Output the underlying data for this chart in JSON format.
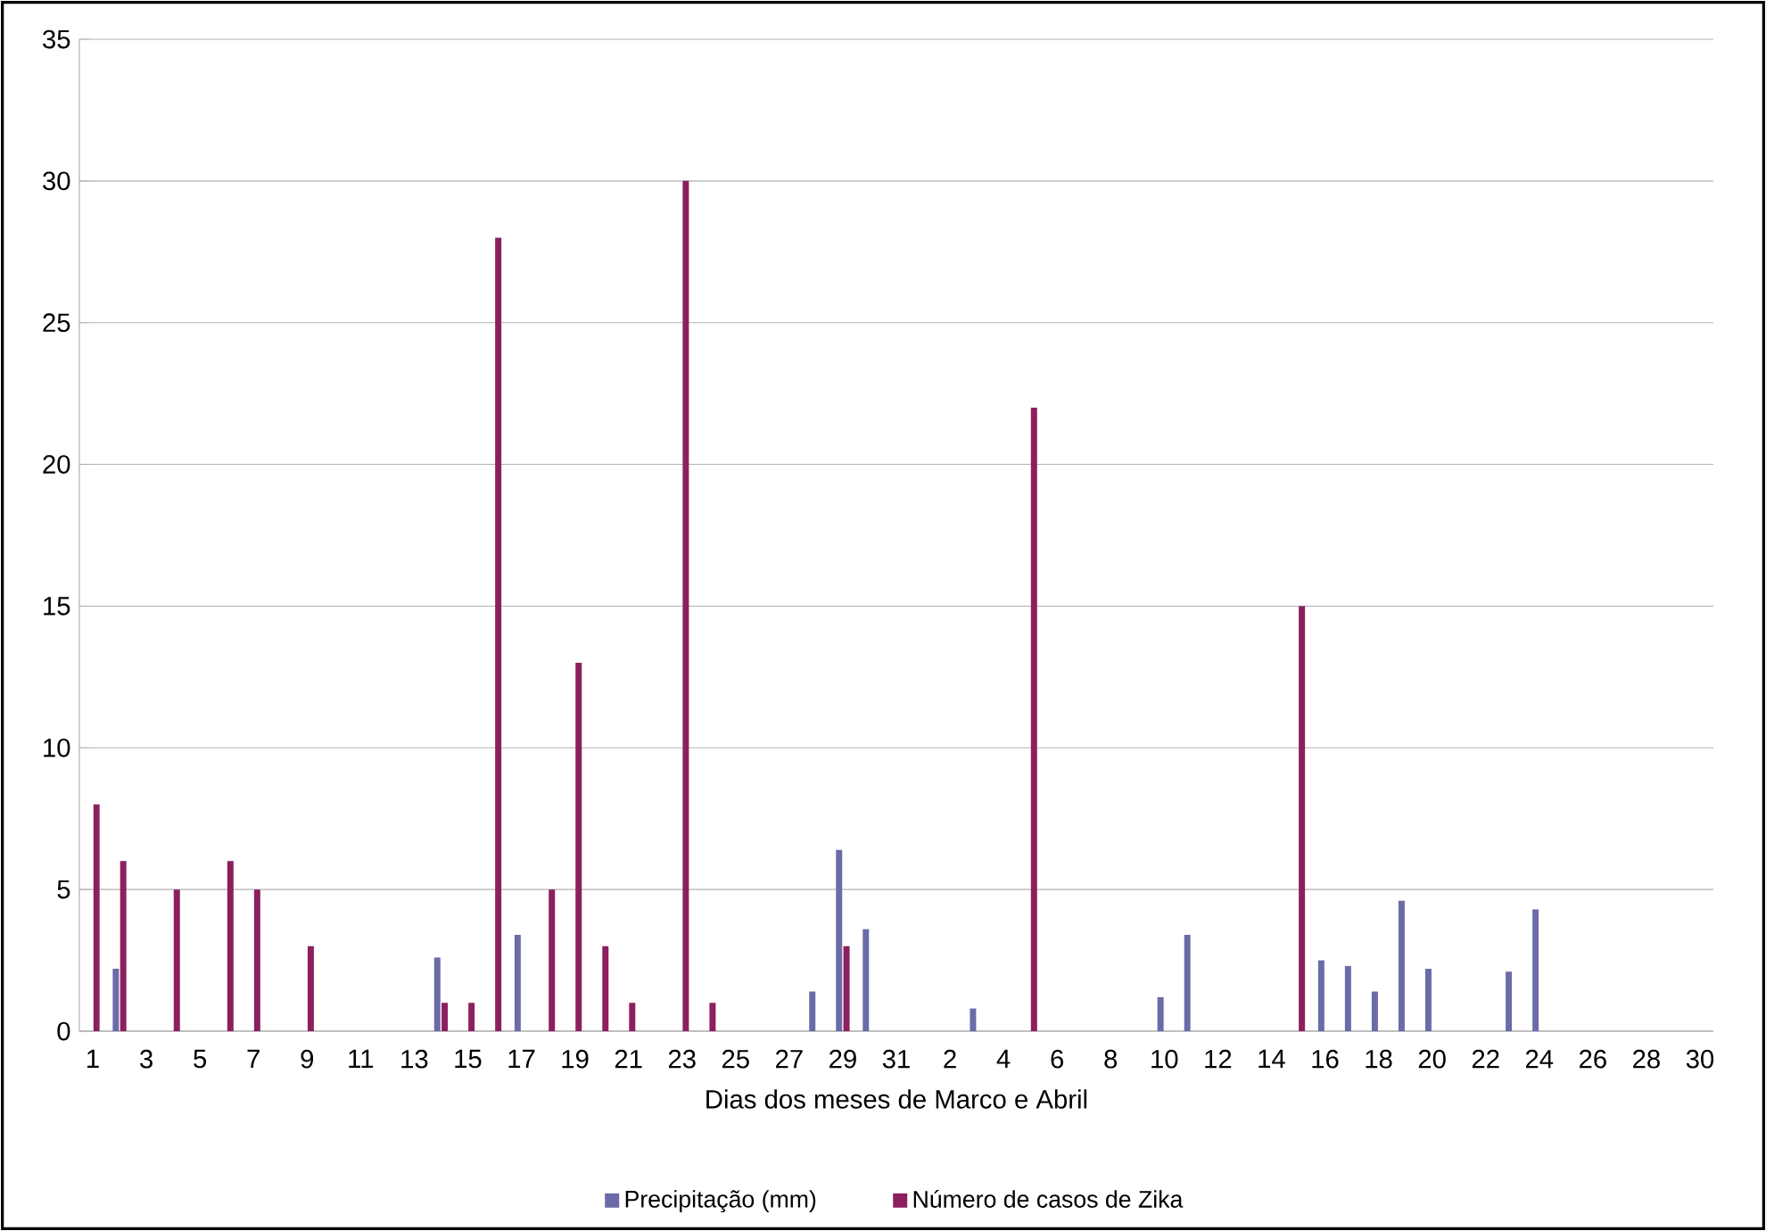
{
  "chart_data": {
    "type": "bar",
    "xlabel": "Dias dos meses de Marco e Abril",
    "categories": [
      "1",
      null,
      "3",
      null,
      "5",
      null,
      "7",
      null,
      "9",
      null,
      "11",
      null,
      "13",
      null,
      "15",
      null,
      "17",
      null,
      "19",
      null,
      "21",
      null,
      "23",
      null,
      "25",
      null,
      "27",
      null,
      "29",
      null,
      "31",
      null,
      "2",
      null,
      "4",
      null,
      "6",
      null,
      "8",
      null,
      "10",
      null,
      "12",
      null,
      "14",
      null,
      "16",
      null,
      "18",
      null,
      "20",
      null,
      "22",
      null,
      "24",
      null,
      "26",
      null,
      "28",
      null,
      "30"
    ],
    "series": [
      {
        "name": "Precipitação (mm)",
        "color": "#6b6ba8",
        "values": [
          0,
          2.2,
          0,
          0,
          0,
          0,
          0,
          0,
          0,
          0,
          0,
          0,
          0,
          2.6,
          0,
          0,
          3.4,
          0,
          0,
          0,
          0,
          0,
          0,
          0,
          0,
          0,
          0,
          1.4,
          6.4,
          3.6,
          0,
          0,
          0,
          0.8,
          0,
          0,
          0,
          0,
          0,
          0,
          1.2,
          3.4,
          0,
          0,
          0,
          0,
          2.5,
          2.3,
          1.4,
          4.6,
          2.2,
          0,
          0,
          2.1,
          4.3,
          0,
          0,
          0,
          0,
          0,
          0
        ]
      },
      {
        "name": "Número de casos de Zika",
        "color": "#8c1f5e",
        "values": [
          8,
          6,
          0,
          5,
          0,
          6,
          5,
          0,
          3,
          0,
          0,
          0,
          0,
          1,
          1,
          28,
          0,
          5,
          13,
          3,
          1,
          0,
          30,
          1,
          0,
          0,
          0,
          0,
          3,
          0,
          0,
          0,
          0,
          0,
          0,
          22,
          0,
          0,
          0,
          0,
          0,
          0,
          0,
          0,
          0,
          15,
          0,
          0,
          0,
          0,
          0,
          0,
          0,
          0,
          0,
          0,
          0,
          0,
          0,
          0,
          0
        ]
      }
    ],
    "ylim": [
      0,
      35
    ],
    "yticks": [
      0,
      5,
      10,
      15,
      20,
      25,
      30,
      35
    ],
    "grid": "y",
    "legend": "bottom"
  }
}
